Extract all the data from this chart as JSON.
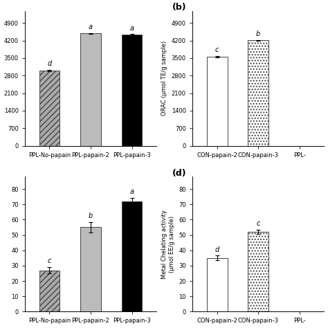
{
  "subplot_a": {
    "categories": [
      "PPL-No-papain",
      "PPL-papain-2",
      "PPL-papain-3"
    ],
    "values": [
      3000,
      4480,
      4430
    ],
    "errors": [
      30,
      22,
      22
    ],
    "letters": [
      "d",
      "a",
      "a"
    ],
    "colors": [
      "#aaaaaa",
      "#bbbbbb",
      "#000000"
    ],
    "hatches": [
      "////",
      "",
      ""
    ],
    "ylabel": "",
    "ylim": [
      0,
      5390
    ],
    "yticks": [
      0,
      700,
      1400,
      2100,
      2800,
      3500,
      4200,
      4900
    ]
  },
  "subplot_b": {
    "panel_label": "(b)",
    "categories": [
      "CON-papain-2",
      "CON-papain-3",
      "PPL-"
    ],
    "values": [
      3560,
      4210,
      0
    ],
    "errors": [
      30,
      20,
      0
    ],
    "letters": [
      "c",
      "b",
      ""
    ],
    "colors": [
      "#ffffff",
      "#ffffff",
      "#ffffff"
    ],
    "hatches": [
      "",
      "....",
      ""
    ],
    "ylabel": "ORAC (µmol TE/g sample)",
    "ylim": [
      0,
      5390
    ],
    "yticks": [
      0,
      700,
      1400,
      2100,
      2800,
      3500,
      4200,
      4900
    ]
  },
  "subplot_c": {
    "categories": [
      "PPL-No-papain",
      "PPL-papain-2",
      "PPL-papain-3"
    ],
    "values": [
      27,
      55,
      72
    ],
    "errors": [
      2,
      3.5,
      2
    ],
    "letters": [
      "c",
      "b",
      "a"
    ],
    "colors": [
      "#aaaaaa",
      "#bbbbbb",
      "#000000"
    ],
    "hatches": [
      "////",
      "",
      ""
    ],
    "ylabel": "",
    "ylim": [
      0,
      88
    ],
    "yticks": [
      0,
      10,
      20,
      30,
      40,
      50,
      60,
      70,
      80
    ]
  },
  "subplot_d": {
    "panel_label": "(d)",
    "categories": [
      "CON-papain-2",
      "CON-papain-3",
      "PPL-"
    ],
    "values": [
      35,
      52,
      0
    ],
    "errors": [
      1.5,
      1.5,
      0
    ],
    "letters": [
      "d",
      "c",
      ""
    ],
    "colors": [
      "#ffffff",
      "#ffffff",
      "#ffffff"
    ],
    "hatches": [
      "",
      "....",
      ""
    ],
    "ylabel": "Metal Chelating activity\n(µmol EE/g sample)",
    "ylim": [
      0,
      88
    ],
    "yticks": [
      0,
      10,
      20,
      30,
      40,
      50,
      60,
      70,
      80
    ]
  },
  "bar_width": 0.5,
  "edge_color": "#444444",
  "error_color": "#000000",
  "font_size": 6,
  "letter_font_size": 7,
  "axis_label_fontsize": 6,
  "panel_label_fontsize": 9,
  "tick_fontsize": 6
}
